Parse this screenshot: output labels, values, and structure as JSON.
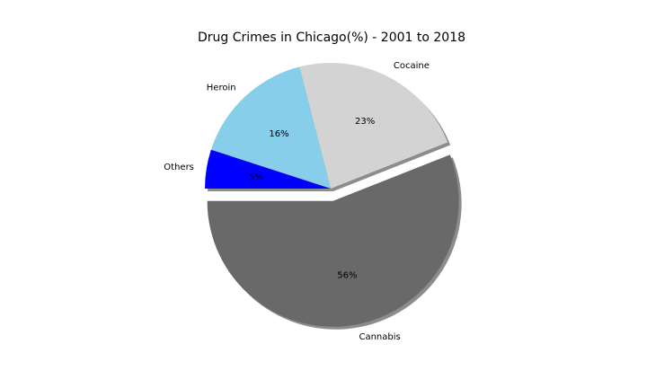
{
  "chart_data": {
    "type": "pie",
    "title": "Drug Crimes in Chicago(%) - 2001 to 2018",
    "slices": [
      {
        "label": "Cannabis",
        "value": 56,
        "pct_text": "56%",
        "color": "#696969",
        "exploded": true
      },
      {
        "label": "Cocaine",
        "value": 23,
        "pct_text": "23%",
        "color": "#d3d3d3",
        "exploded": false
      },
      {
        "label": "Heroin",
        "value": 16,
        "pct_text": "16%",
        "color": "#87ceeb",
        "exploded": false
      },
      {
        "label": "Others",
        "value": 5,
        "pct_text": "5%",
        "color": "#0000ff",
        "exploded": false
      }
    ],
    "start_angle_deg": 180,
    "direction": "counterclockwise",
    "shadow": true,
    "legend": "none"
  }
}
